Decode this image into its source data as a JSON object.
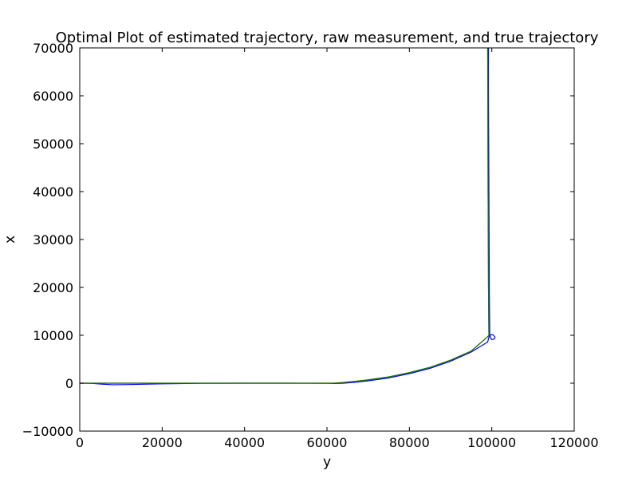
{
  "chart_data": {
    "type": "line",
    "title": "Optimal Plot of estimated trajectory, raw measurement, and true trajectory",
    "xlabel": "y",
    "ylabel": "x",
    "xlim": [
      0,
      120000
    ],
    "ylim": [
      -10000,
      70000
    ],
    "xticks": [
      0,
      20000,
      40000,
      60000,
      80000,
      100000,
      120000
    ],
    "yticks": [
      -10000,
      0,
      10000,
      20000,
      30000,
      40000,
      50000,
      60000,
      70000
    ],
    "xtick_labels": [
      "0",
      "20000",
      "40000",
      "60000",
      "80000",
      "100000",
      "120000"
    ],
    "ytick_labels": [
      "−10000",
      "0",
      "10000",
      "20000",
      "30000",
      "40000",
      "50000",
      "60000",
      "70000"
    ],
    "grid": false,
    "series": [
      {
        "color": "#0000ff",
        "points": [
          [
            0,
            0
          ],
          [
            3000,
            -50
          ],
          [
            5000,
            -180
          ],
          [
            8000,
            -320
          ],
          [
            12000,
            -280
          ],
          [
            20000,
            -120
          ],
          [
            30000,
            -20
          ],
          [
            40000,
            0
          ],
          [
            50000,
            0
          ],
          [
            60000,
            -20
          ],
          [
            62000,
            -60
          ],
          [
            64000,
            0
          ],
          [
            67000,
            200
          ],
          [
            70000,
            500
          ],
          [
            75000,
            1100
          ],
          [
            80000,
            2000
          ],
          [
            85000,
            3100
          ],
          [
            90000,
            4600
          ],
          [
            95000,
            6500
          ],
          [
            99000,
            8600
          ],
          [
            99300,
            9600
          ],
          [
            99700,
            10100
          ],
          [
            100300,
            10100
          ],
          [
            100800,
            9600
          ],
          [
            100600,
            9200
          ],
          [
            100000,
            9100
          ],
          [
            99700,
            9500
          ],
          [
            99500,
            10000
          ],
          [
            99400,
            20000
          ],
          [
            99300,
            40000
          ],
          [
            99200,
            60000
          ],
          [
            99200,
            70000
          ]
        ]
      },
      {
        "color": "#ff0000",
        "points": [
          [
            0,
            0
          ],
          [
            5000,
            0
          ],
          [
            10000,
            0
          ],
          [
            20000,
            0
          ],
          [
            30000,
            0
          ],
          [
            40000,
            0
          ],
          [
            50000,
            0
          ],
          [
            60000,
            0
          ],
          [
            62000,
            20
          ],
          [
            64000,
            150
          ],
          [
            67000,
            400
          ],
          [
            70000,
            700
          ],
          [
            75000,
            1300
          ],
          [
            80000,
            2200
          ],
          [
            85000,
            3300
          ],
          [
            90000,
            4800
          ],
          [
            95000,
            6700
          ],
          [
            99000,
            9700
          ],
          [
            99300,
            10000
          ],
          [
            99200,
            20000
          ],
          [
            99100,
            40000
          ],
          [
            99050,
            60000
          ],
          [
            99000,
            70000
          ]
        ]
      },
      {
        "color": "#008000",
        "points": [
          [
            0,
            0
          ],
          [
            10000,
            0
          ],
          [
            20000,
            0
          ],
          [
            30000,
            0
          ],
          [
            40000,
            0
          ],
          [
            50000,
            0
          ],
          [
            60000,
            0
          ],
          [
            62000,
            30
          ],
          [
            64000,
            160
          ],
          [
            67000,
            410
          ],
          [
            70000,
            710
          ],
          [
            75000,
            1310
          ],
          [
            80000,
            2210
          ],
          [
            85000,
            3310
          ],
          [
            90000,
            4810
          ],
          [
            95000,
            6710
          ],
          [
            99000,
            9700
          ],
          [
            99300,
            10000
          ],
          [
            99200,
            20000
          ],
          [
            99100,
            40000
          ],
          [
            99050,
            60000
          ],
          [
            99000,
            70000
          ]
        ]
      }
    ]
  }
}
